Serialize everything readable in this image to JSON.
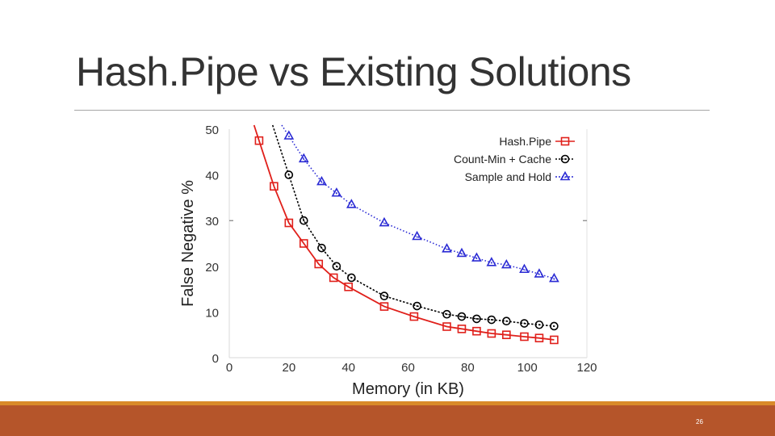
{
  "slide": {
    "title": "Hash.Pipe vs Existing Solutions",
    "page_number": "26",
    "colors": {
      "footer": "#b5552a",
      "footer_accent": "#d98a29",
      "title_rule": "#a6a6a6"
    }
  },
  "chart_data": {
    "type": "line",
    "title": "",
    "xlabel": "Memory (in KB)",
    "ylabel": "False Negative %",
    "xlim": [
      0,
      120
    ],
    "ylim": [
      0,
      50
    ],
    "xticks": [
      0,
      20,
      40,
      60,
      80,
      100,
      120
    ],
    "yticks": [
      0,
      10,
      20,
      30,
      40,
      50
    ],
    "grid": false,
    "legend_position": "top-right",
    "series": [
      {
        "name": "Hash.Pipe",
        "color": "#e0201b",
        "line_style": "solid",
        "marker": "square",
        "x": [
          10,
          15,
          20,
          25,
          30,
          35,
          40,
          52,
          62,
          73,
          78,
          83,
          88,
          93,
          99,
          104,
          109
        ],
        "y": [
          47.5,
          37.5,
          29.5,
          25,
          20.5,
          17.5,
          15.5,
          11.2,
          9,
          6.8,
          6.3,
          5.8,
          5.3,
          5,
          4.6,
          4.3,
          3.9
        ]
      },
      {
        "name": "Count-Min + Cache",
        "color": "#000000",
        "line_style": "dotted",
        "marker": "circle",
        "x": [
          20,
          25,
          31,
          36,
          41,
          52,
          63,
          73,
          78,
          83,
          88,
          93,
          99,
          104,
          109
        ],
        "y": [
          40,
          30,
          24,
          20,
          17.5,
          13.5,
          11.3,
          9.5,
          9,
          8.5,
          8.3,
          8,
          7.5,
          7.2,
          6.9
        ]
      },
      {
        "name": "Sample and Hold",
        "color": "#2a2ad4",
        "line_style": "dotted",
        "marker": "triangle",
        "x": [
          20,
          25,
          31,
          36,
          41,
          52,
          63,
          73,
          78,
          83,
          88,
          93,
          99,
          104,
          109
        ],
        "y": [
          48.5,
          43.5,
          38.5,
          36,
          33.5,
          29.5,
          26.5,
          23.8,
          22.8,
          21.8,
          20.8,
          20.3,
          19.3,
          18.3,
          17.3
        ]
      }
    ]
  }
}
